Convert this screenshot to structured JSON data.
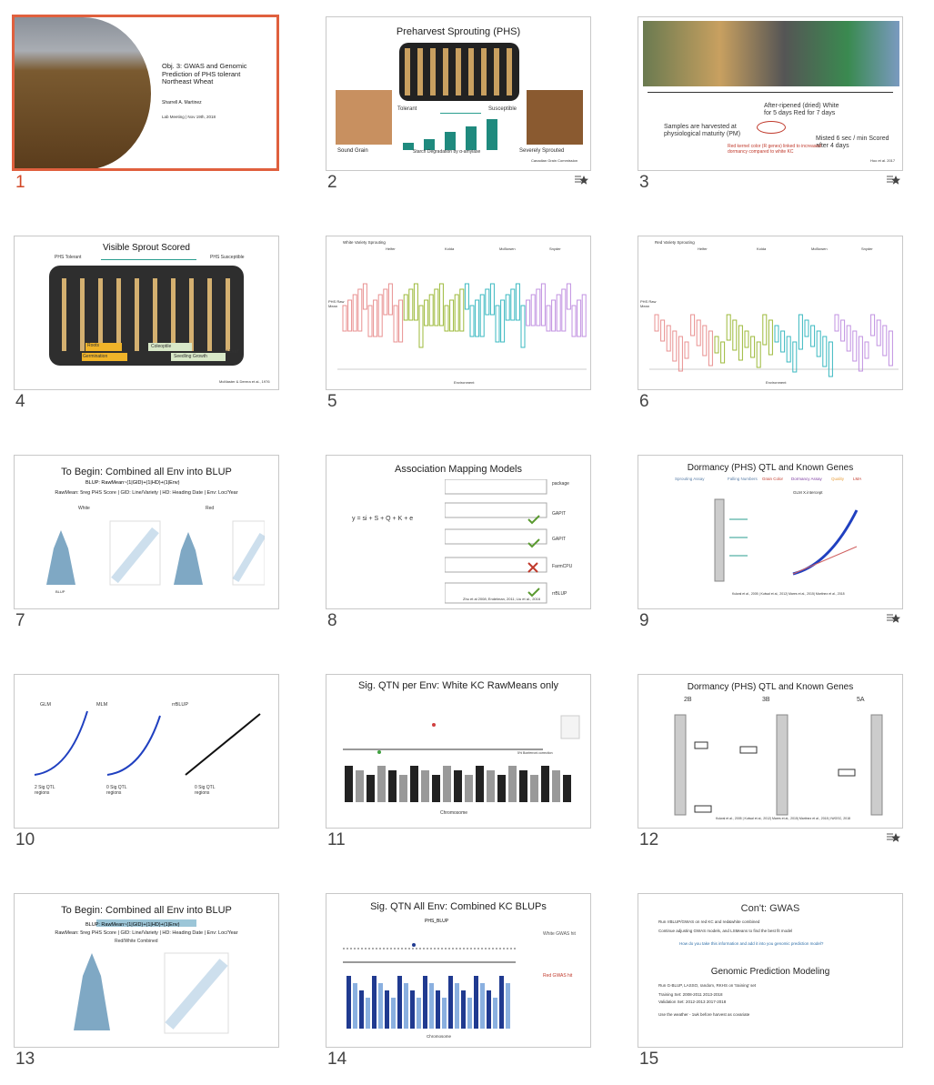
{
  "slides": [
    {
      "number": "1",
      "title": "Obj. 3: GWAS and Genomic Prediction of PHS tolerant Northeast Wheat",
      "texts": [
        "Sharrell A. Martinez",
        "Lab Meeting | Nov 19th, 2018"
      ]
    },
    {
      "number": "2",
      "title": "Preharvest Sprouting (PHS)",
      "texts": [
        "Tolerant",
        "Susceptible",
        "Sound Grain",
        "Severely Sprouted",
        "Starch Degradation by α-amylase",
        "Canadian Grain Commission"
      ]
    },
    {
      "number": "3",
      "title": "After-ripened (dried) White for 5 days Red for 7 days",
      "texts": [
        "Samples are harvested at physiological maturity (PM)",
        "Misted 6 sec / min Scored after 4 days",
        "Red kernel color (R genes) linked to increased dormancy compared to white KC",
        "Hoo et al. 2017"
      ]
    },
    {
      "number": "4",
      "title": "Visible Sprout Scored",
      "texts": [
        "PHS Tolerant",
        "PHS Susceptible",
        "Roots",
        "Germination",
        "Coleoptile",
        "Seedling Growth",
        "1st Leaf",
        "McMaster & Derera et al., 1976"
      ]
    },
    {
      "number": "5",
      "title": "White Variety Sprouting",
      "texts": [
        "Helfer",
        "Kolda",
        "McBowen",
        "Snyder",
        "PHS Raw Mean",
        "Environment"
      ]
    },
    {
      "number": "6",
      "title": "Red Variety Sprouting",
      "texts": [
        "Helfer",
        "Kolda",
        "McBowen",
        "Snyder",
        "PHS Raw Mean",
        "Environment"
      ]
    },
    {
      "number": "7",
      "title": "To Begin: Combined all Env into BLUP",
      "texts": [
        "BLUP: RawMean~(1|GID)+(1|HD)+(1|Env)",
        "RawMean: 5reg PHS Score | GID: Line/Variety | HD: Heading Date | Env: Loc/Year",
        "White",
        "Red",
        "BLUP"
      ]
    },
    {
      "number": "8",
      "title": "Association Mapping Models",
      "texts": [
        "package",
        "GAPIT",
        "GAPIT",
        "FarmCPU",
        "rrBLUP",
        "y = si + S + Q + K + e",
        "Zhu et al 2008; Endelman, 2011; Liu et al., 2016"
      ]
    },
    {
      "number": "9",
      "title": "Dormancy (PHS) QTL and Known Genes",
      "texts": [
        "Sprouting Assay",
        "Falling Numbers",
        "Grain Color",
        "Dormancy Assay",
        "Quality",
        "LMA",
        "GLM X.intercept",
        "Kulwal et al., 2005 | Kulwal et al., 2012| Mares et al., 2015| Martinez et al., 2018"
      ]
    },
    {
      "number": "10",
      "title": "GLM",
      "texts": [
        "MLM",
        "rrBLUP",
        "2 Sig QTL regions",
        "0 Sig QTL regions",
        "0 Sig QTL regions"
      ]
    },
    {
      "number": "11",
      "title": "Sig. QTN per Env: White KC RawMeans only",
      "texts": [
        "Chromosome",
        "5% Bonferroni correction"
      ]
    },
    {
      "number": "12",
      "title": "Dormancy (PHS) QTL and Known Genes",
      "texts": [
        "2B",
        "3B",
        "5A",
        "Kulwal et al., 2005 | Kulwal et al., 2012| Mares et al., 2015| Martinez et al., 2018 | IWGSC, 2018"
      ]
    },
    {
      "number": "13",
      "title": "To Begin: Combined all Env into BLUP",
      "texts": [
        "BLUP: RawMean~(1|GID)+(1|HD)+(1|Env)",
        "RawMean: 5reg PHS Score | GID: Line/Variety | HD: Heading Date | Env: Loc/Year",
        "Red/White Combined"
      ]
    },
    {
      "number": "14",
      "title": "Sig. QTN All Env: Combined KC BLUPs",
      "texts": [
        "PHS_BLUP",
        "Chromosome",
        "White GWAS hit",
        "Red GWAS hit"
      ]
    },
    {
      "number": "15",
      "title": "Con't: GWAS",
      "texts": [
        "Run rrBLUP/GWAS on red KC and red&white combined",
        "Continue adjusting GWAS models, and LSMeans to find the best fit model",
        "How do you take this information and add it into you genomic prediction model?",
        "Genomic Prediction Modeling",
        "Run G-BLUP, LASSO, random, RKHS on 'training' set",
        "Training Set: 2008-2011 2013-2018",
        "Validation Set: 2012-2013 2017-2018",
        "Use the weather - 1wk before harvest as covariate"
      ]
    }
  ]
}
